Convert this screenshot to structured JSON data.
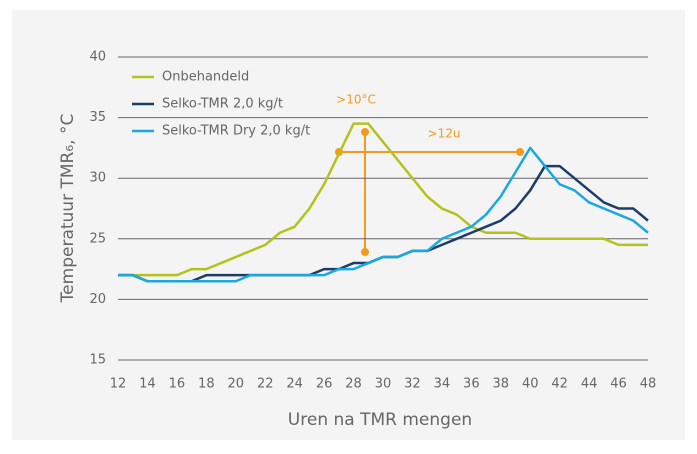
{
  "chart_data": {
    "type": "line",
    "x_label": "Uren na TMR mengen",
    "y_label": "Temperatuur TMR₆, °C",
    "x": [
      12,
      13,
      14,
      15,
      16,
      17,
      18,
      19,
      20,
      21,
      22,
      23,
      24,
      25,
      26,
      27,
      28,
      29,
      30,
      31,
      32,
      33,
      34,
      35,
      36,
      37,
      38,
      39,
      40,
      41,
      42,
      43,
      44,
      45,
      46,
      47,
      48
    ],
    "series": [
      {
        "name": "Onbehandeld",
        "color": "#b4c21c",
        "values": [
          22,
          22,
          22,
          22,
          22,
          22.5,
          22.5,
          23,
          23.5,
          24,
          24.5,
          25.5,
          26,
          27.5,
          29.5,
          32,
          34.5,
          34.5,
          33,
          31.5,
          30,
          28.5,
          27.5,
          27,
          26,
          25.5,
          25.5,
          25.5,
          25,
          25,
          25,
          25,
          25,
          25,
          24.5,
          24.5,
          24.5
        ]
      },
      {
        "name": "Selko-TMR 2,0 kg/t",
        "color": "#1c3c6a",
        "values": [
          22,
          22,
          21.5,
          21.5,
          21.5,
          21.5,
          22,
          22,
          22,
          22,
          22,
          22,
          22,
          22,
          22.5,
          22.5,
          23,
          23,
          23.5,
          23.5,
          24,
          24,
          24.5,
          25,
          25.5,
          26,
          26.5,
          27.5,
          29,
          31,
          31,
          30,
          29,
          28,
          27.5,
          27.5,
          26.5
        ]
      },
      {
        "name": "Selko-TMR Dry 2,0 kg/t",
        "color": "#1ba8de",
        "values": [
          22,
          22,
          21.5,
          21.5,
          21.5,
          21.5,
          21.5,
          21.5,
          21.5,
          22,
          22,
          22,
          22,
          22,
          22,
          22.5,
          22.5,
          23,
          23.5,
          23.5,
          24,
          24,
          25,
          25.5,
          26,
          27,
          28.5,
          30.5,
          32.5,
          31,
          29.5,
          29,
          28,
          27.5,
          27,
          26.5,
          25.5
        ]
      }
    ],
    "annotations": [
      ">10°C",
      ">12u"
    ],
    "xlim": [
      12,
      48
    ],
    "xticks": [
      12,
      14,
      16,
      18,
      20,
      22,
      24,
      26,
      28,
      30,
      32,
      34,
      36,
      38,
      40,
      42,
      44,
      46,
      48
    ],
    "ylim": [
      15,
      40
    ],
    "yticks": [
      15,
      20,
      25,
      30,
      35,
      40
    ],
    "grid": true,
    "legend": "upper left"
  }
}
